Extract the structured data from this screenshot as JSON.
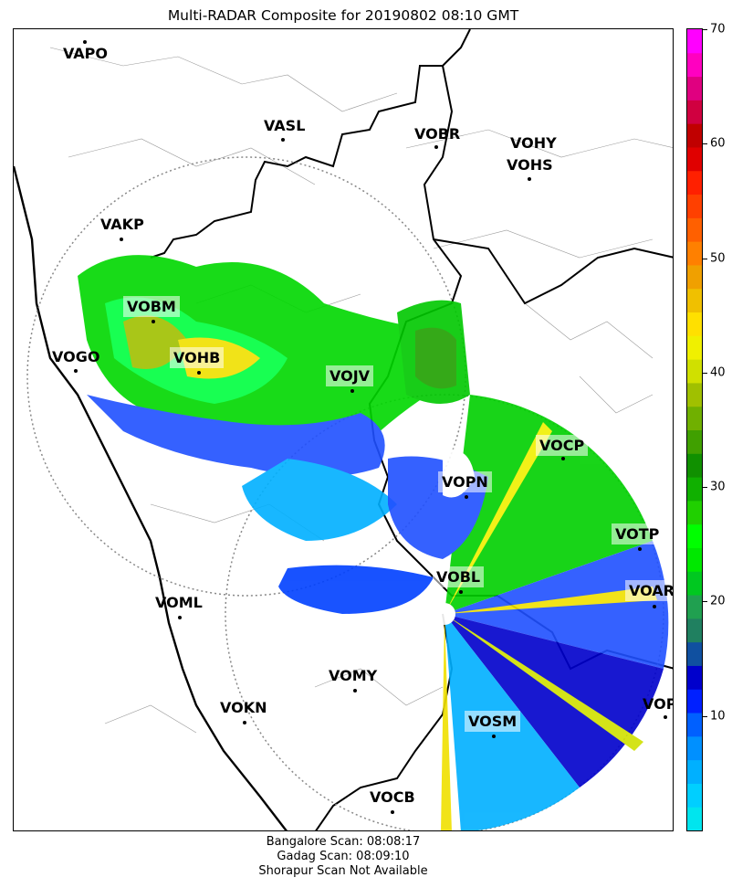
{
  "title": "Multi-RADAR Composite for 20190802 08:10 GMT",
  "footer": {
    "line1": "Bangalore Scan: 08:08:17",
    "line2": "Gadag Scan: 08:09:10",
    "line3": "Shorapur Scan Not Available"
  },
  "colorbar": {
    "min": 0,
    "max": 70,
    "ticks": [
      "10",
      "20",
      "30",
      "40",
      "50",
      "60",
      "70"
    ],
    "colors": [
      "#00e5ee",
      "#00cfff",
      "#00b0ff",
      "#0090ff",
      "#0060ff",
      "#0020ff",
      "#0000cc",
      "#1050a0",
      "#208060",
      "#20a050",
      "#00c820",
      "#00e800",
      "#00ff00",
      "#20d000",
      "#10b000",
      "#109000",
      "#40a000",
      "#70b000",
      "#a0c000",
      "#d0e000",
      "#f0f000",
      "#ffe000",
      "#f0c000",
      "#f0a000",
      "#ff8000",
      "#ff6000",
      "#ff4000",
      "#ff2000",
      "#e00000",
      "#c00000",
      "#d00040",
      "#e00080",
      "#ff00c0",
      "#ff00ff"
    ]
  },
  "stations": {
    "vapo": "VAPO",
    "vasl": "VASL",
    "vobr": "VOBR",
    "vohy": "VOHY",
    "vohs": "VOHS",
    "vakp": "VAKP",
    "vobm": "VOBM",
    "vogo": "VOGO",
    "vohb": "VOHB",
    "vojv": "VOJV",
    "vocp": "VOCP",
    "vopn": "VOPN",
    "votp": "VOTP",
    "vobl": "VOBL",
    "voar": "VOAR",
    "voml": "VOML",
    "vomy": "VOMY",
    "vokn": "VOKN",
    "vopc": "VOPC",
    "vosm": "VOSM",
    "vocb": "VOCB"
  }
}
